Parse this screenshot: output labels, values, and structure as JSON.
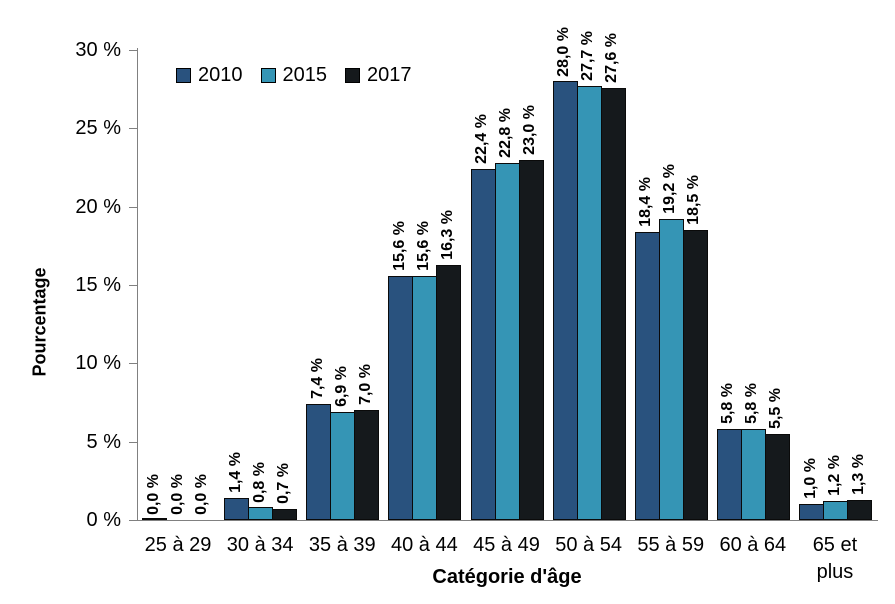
{
  "chart_data": {
    "type": "bar",
    "title": "",
    "xlabel": "Catégorie d'âge",
    "ylabel": "Pourcentage",
    "ylim": [
      0,
      30
    ],
    "grid": false,
    "legend_position": "top-left-inside",
    "y_ticks": [
      {
        "label": "0 %",
        "value": 0
      },
      {
        "label": "5 %",
        "value": 5
      },
      {
        "label": "10 %",
        "value": 10
      },
      {
        "label": "15 %",
        "value": 15
      },
      {
        "label": "20 %",
        "value": 20
      },
      {
        "label": "25 %",
        "value": 25
      },
      {
        "label": "30 %",
        "value": 30
      }
    ],
    "categories": [
      "25 à 29",
      "30 à 34",
      "35 à 39",
      "40 à 44",
      "45 à 49",
      "50 à 54",
      "55 à 59",
      "60 à 64",
      "65 et plus"
    ],
    "series": [
      {
        "name": "2010",
        "color": "#29527E",
        "values": [
          0.0,
          1.4,
          7.4,
          15.6,
          22.4,
          28.0,
          18.4,
          5.8,
          1.0
        ],
        "labels": [
          "0,0 %",
          "1,4 %",
          "7,4 %",
          "15,6 %",
          "22,4 %",
          "28,0 %",
          "18,4 %",
          "5,8 %",
          "1,0 %"
        ]
      },
      {
        "name": "2015",
        "color": "#3595B5",
        "values": [
          0.0,
          0.8,
          6.9,
          15.6,
          22.8,
          27.7,
          19.2,
          5.8,
          1.2
        ],
        "labels": [
          "0,0 %",
          "0,8 %",
          "6,9 %",
          "15,6 %",
          "22,8 %",
          "27,7 %",
          "19,2 %",
          "5,8 %",
          "1,2 %"
        ]
      },
      {
        "name": "2017",
        "color": "#15191C",
        "values": [
          0.0,
          0.7,
          7.0,
          16.3,
          23.0,
          27.6,
          18.5,
          5.5,
          1.3
        ],
        "labels": [
          "0,0 %",
          "0,7 %",
          "7,0 %",
          "16,3 %",
          "23,0 %",
          "27,6 %",
          "18,5 %",
          "5,5 %",
          "1,3 %"
        ]
      }
    ]
  }
}
